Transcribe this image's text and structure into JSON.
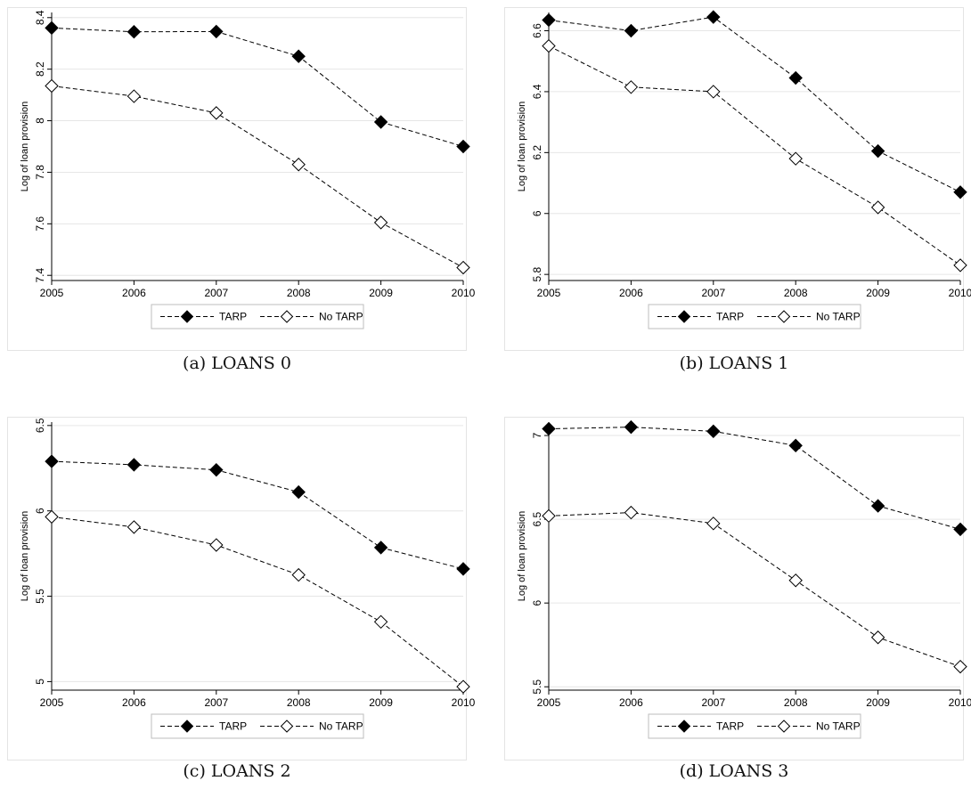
{
  "chart_data": [
    {
      "type": "line",
      "caption": "(a) LOANS 0",
      "x": [
        2005,
        2006,
        2007,
        2008,
        2009,
        2010
      ],
      "x_tick_labels": [
        "2005",
        "2006",
        "2007",
        "2008",
        "2009",
        "2010"
      ],
      "ylabel": "Log of loan provision",
      "ylim": [
        7.38,
        8.42
      ],
      "y_ticks": [
        7.4,
        7.6,
        7.8,
        8,
        8.2,
        8.4
      ],
      "y_tick_labels": [
        "7.4",
        "7.6",
        "7.8",
        "8",
        "8.2",
        "8.4"
      ],
      "grid": true,
      "legend_position": "bottom",
      "series": [
        {
          "name": "TARP",
          "marker": "filled-diamond",
          "values": [
            8.36,
            8.345,
            8.346,
            8.25,
            7.995,
            7.9
          ]
        },
        {
          "name": "No TARP",
          "marker": "hollow-diamond",
          "values": [
            8.135,
            8.095,
            8.03,
            7.83,
            7.605,
            7.43
          ]
        }
      ]
    },
    {
      "type": "line",
      "caption": "(b) LOANS 1",
      "x": [
        2005,
        2006,
        2007,
        2008,
        2009,
        2010
      ],
      "x_tick_labels": [
        "2005",
        "2006",
        "2007",
        "2008",
        "2009",
        "2010"
      ],
      "ylabel": "Log of loan provision",
      "ylim": [
        5.78,
        6.66
      ],
      "y_ticks": [
        5.8,
        6,
        6.2,
        6.4,
        6.6
      ],
      "y_tick_labels": [
        "5.8",
        "6",
        "6.2",
        "6.4",
        "6.6"
      ],
      "grid": true,
      "legend_position": "bottom",
      "series": [
        {
          "name": "TARP",
          "marker": "filled-diamond",
          "values": [
            6.635,
            6.6,
            6.645,
            6.445,
            6.205,
            6.07
          ]
        },
        {
          "name": "No TARP",
          "marker": "hollow-diamond",
          "values": [
            6.55,
            6.415,
            6.4,
            6.18,
            6.02,
            5.83
          ]
        }
      ]
    },
    {
      "type": "line",
      "caption": "(c) LOANS 2",
      "x": [
        2005,
        2006,
        2007,
        2008,
        2009,
        2010
      ],
      "x_tick_labels": [
        "2005",
        "2006",
        "2007",
        "2008",
        "2009",
        "2010"
      ],
      "ylabel": "Log of loan provision",
      "ylim": [
        4.95,
        6.52
      ],
      "y_ticks": [
        5,
        5.5,
        6,
        6.5
      ],
      "y_tick_labels": [
        "5",
        "5.5",
        "6",
        "6.5"
      ],
      "grid": true,
      "legend_position": "bottom",
      "series": [
        {
          "name": "TARP",
          "marker": "filled-diamond",
          "values": [
            6.29,
            6.27,
            6.24,
            6.11,
            5.785,
            5.66
          ]
        },
        {
          "name": "No TARP",
          "marker": "hollow-diamond",
          "values": [
            5.965,
            5.905,
            5.8,
            5.625,
            5.35,
            4.97
          ]
        }
      ]
    },
    {
      "type": "line",
      "caption": "(d) LOANS 3",
      "x": [
        2005,
        2006,
        2007,
        2008,
        2009,
        2010
      ],
      "x_tick_labels": [
        "2005",
        "2006",
        "2007",
        "2008",
        "2009",
        "2010"
      ],
      "ylabel": "Log of loan provision",
      "ylim": [
        5.48,
        7.08
      ],
      "y_ticks": [
        5.5,
        6,
        6.5,
        7
      ],
      "y_tick_labels": [
        "5.5",
        "6",
        "6.5",
        "7"
      ],
      "grid": true,
      "legend_position": "bottom",
      "series": [
        {
          "name": "TARP",
          "marker": "filled-diamond",
          "values": [
            7.04,
            7.05,
            7.025,
            6.94,
            6.58,
            6.44
          ]
        },
        {
          "name": "No TARP",
          "marker": "hollow-diamond",
          "values": [
            6.52,
            6.54,
            6.475,
            6.135,
            5.795,
            5.62
          ]
        }
      ]
    }
  ]
}
